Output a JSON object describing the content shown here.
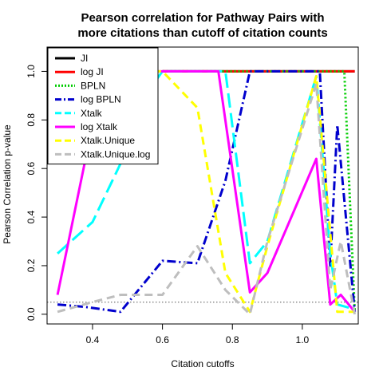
{
  "chart_data": {
    "type": "line",
    "title": "Pearson correlation for Pathway Pairs with",
    "subtitle": "more citations than cutoff of citation counts",
    "xlabel": "Citation cutoffs",
    "ylabel": "Pearson Correlation p-value",
    "xlim": [
      0.27,
      1.16
    ],
    "ylim": [
      -0.04,
      1.1
    ],
    "x_ticks": [
      0.4,
      0.6,
      0.8,
      1.0
    ],
    "x_tick_labels": [
      "0.4",
      "0.6",
      "0.8",
      "1.0"
    ],
    "y_ticks": [
      0.0,
      0.2,
      0.4,
      0.6,
      0.8,
      1.0
    ],
    "y_tick_labels": [
      "0.0",
      "0.2",
      "0.4",
      "0.6",
      "0.8",
      "1.0"
    ],
    "reference_line": {
      "y": 0.05,
      "style": "dotted",
      "color": "#777777"
    },
    "grid": false,
    "legend_position": "top-left",
    "series": [
      {
        "name": "JI",
        "color": "#000000",
        "dash": "solid",
        "x": [
          0.6,
          0.7,
          0.8,
          0.9,
          1.0,
          1.1,
          1.15
        ],
        "y": [
          1.0,
          1.0,
          1.0,
          1.0,
          1.0,
          1.0,
          1.0
        ]
      },
      {
        "name": "log JI",
        "color": "#ff0000",
        "dash": "solid",
        "x": [
          0.6,
          0.7,
          0.8,
          0.9,
          1.0,
          1.1,
          1.15
        ],
        "y": [
          1.0,
          1.0,
          1.0,
          1.0,
          1.0,
          1.0,
          1.0
        ]
      },
      {
        "name": "BPLN",
        "color": "#00cd00",
        "dash": "dotted",
        "x": [
          0.6,
          0.8,
          1.0,
          1.1,
          1.12,
          1.15
        ],
        "y": [
          1.0,
          1.0,
          1.0,
          1.0,
          1.0,
          0.01
        ]
      },
      {
        "name": "log BPLN",
        "color": "#0000cd",
        "dash": "dashdot",
        "x": [
          0.3,
          0.38,
          0.48,
          0.6,
          0.7,
          0.78,
          0.85,
          1.0,
          1.05,
          1.08,
          1.1,
          1.15
        ],
        "y": [
          0.04,
          0.03,
          0.01,
          0.22,
          0.21,
          0.55,
          1.0,
          1.0,
          1.0,
          0.2,
          0.78,
          0.01
        ]
      },
      {
        "name": "Xtalk",
        "color": "#00ffff",
        "dash": "longdash",
        "x": [
          0.3,
          0.4,
          0.5,
          0.55,
          0.6,
          0.78,
          0.85,
          0.9,
          1.04,
          1.08,
          1.1,
          1.15
        ],
        "y": [
          0.25,
          0.38,
          0.68,
          0.9,
          1.0,
          1.0,
          0.21,
          0.3,
          0.98,
          0.25,
          0.04,
          0.02
        ]
      },
      {
        "name": "log Xtalk",
        "color": "#ff00ff",
        "dash": "solid",
        "x": [
          0.3,
          0.4,
          0.5,
          0.6,
          0.76,
          0.85,
          0.9,
          1.04,
          1.08,
          1.11,
          1.15
        ],
        "y": [
          0.08,
          0.78,
          1.0,
          1.0,
          1.0,
          0.09,
          0.17,
          0.64,
          0.04,
          0.08,
          0.01
        ]
      },
      {
        "name": "Xtalk.Unique",
        "color": "#ffff00",
        "dash": "dashed",
        "x": [
          0.5,
          0.6,
          0.7,
          0.78,
          0.85,
          0.9,
          1.04,
          1.1,
          1.15
        ],
        "y": [
          1.0,
          1.0,
          0.85,
          0.17,
          0.01,
          0.28,
          0.98,
          0.01,
          0.01
        ]
      },
      {
        "name": "Xtalk.Unique.log",
        "color": "#bebebe",
        "dash": "dashed",
        "x": [
          0.3,
          0.4,
          0.48,
          0.6,
          0.7,
          0.78,
          0.85,
          0.9,
          1.04,
          1.08,
          1.11,
          1.15
        ],
        "y": [
          0.01,
          0.05,
          0.08,
          0.08,
          0.28,
          0.1,
          0.0,
          0.3,
          0.95,
          0.1,
          0.3,
          0.0
        ]
      }
    ]
  }
}
